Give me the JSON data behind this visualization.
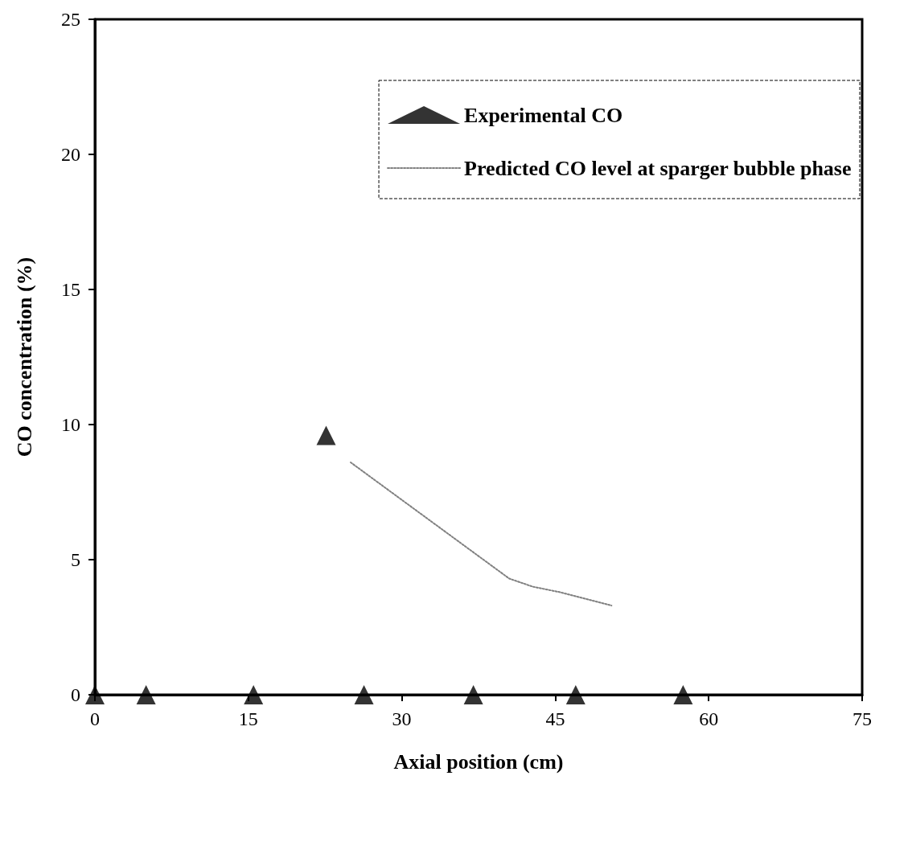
{
  "chart_data": {
    "type": "scatter",
    "xlabel": "Axial position (cm)",
    "ylabel": "CO concentration (%)",
    "xlim": [
      0,
      75
    ],
    "xticks": [
      0,
      15,
      30,
      45,
      60,
      75
    ],
    "ylim": [
      0,
      25
    ],
    "yticks": [
      0,
      5,
      10,
      15,
      20,
      25
    ],
    "grid": false,
    "legend": "top right",
    "series": [
      {
        "name": "Experimental CO",
        "type": "scatter",
        "marker": "triangle",
        "color": "#000000",
        "x": [
          0,
          5,
          15.5,
          22.6,
          26.3,
          37,
          47,
          57.5
        ],
        "values": [
          0,
          0,
          0,
          9.6,
          0,
          0,
          0,
          0
        ]
      },
      {
        "name": "Predicted CO level at sparger bubble phase",
        "type": "line",
        "marker": "none",
        "line_style": "dotted",
        "color": "#808080",
        "x": [
          25,
          40.5,
          42.8,
          45.4,
          50.5
        ],
        "values": [
          8.6,
          4.3,
          4.0,
          3.8,
          3.3
        ]
      }
    ]
  }
}
